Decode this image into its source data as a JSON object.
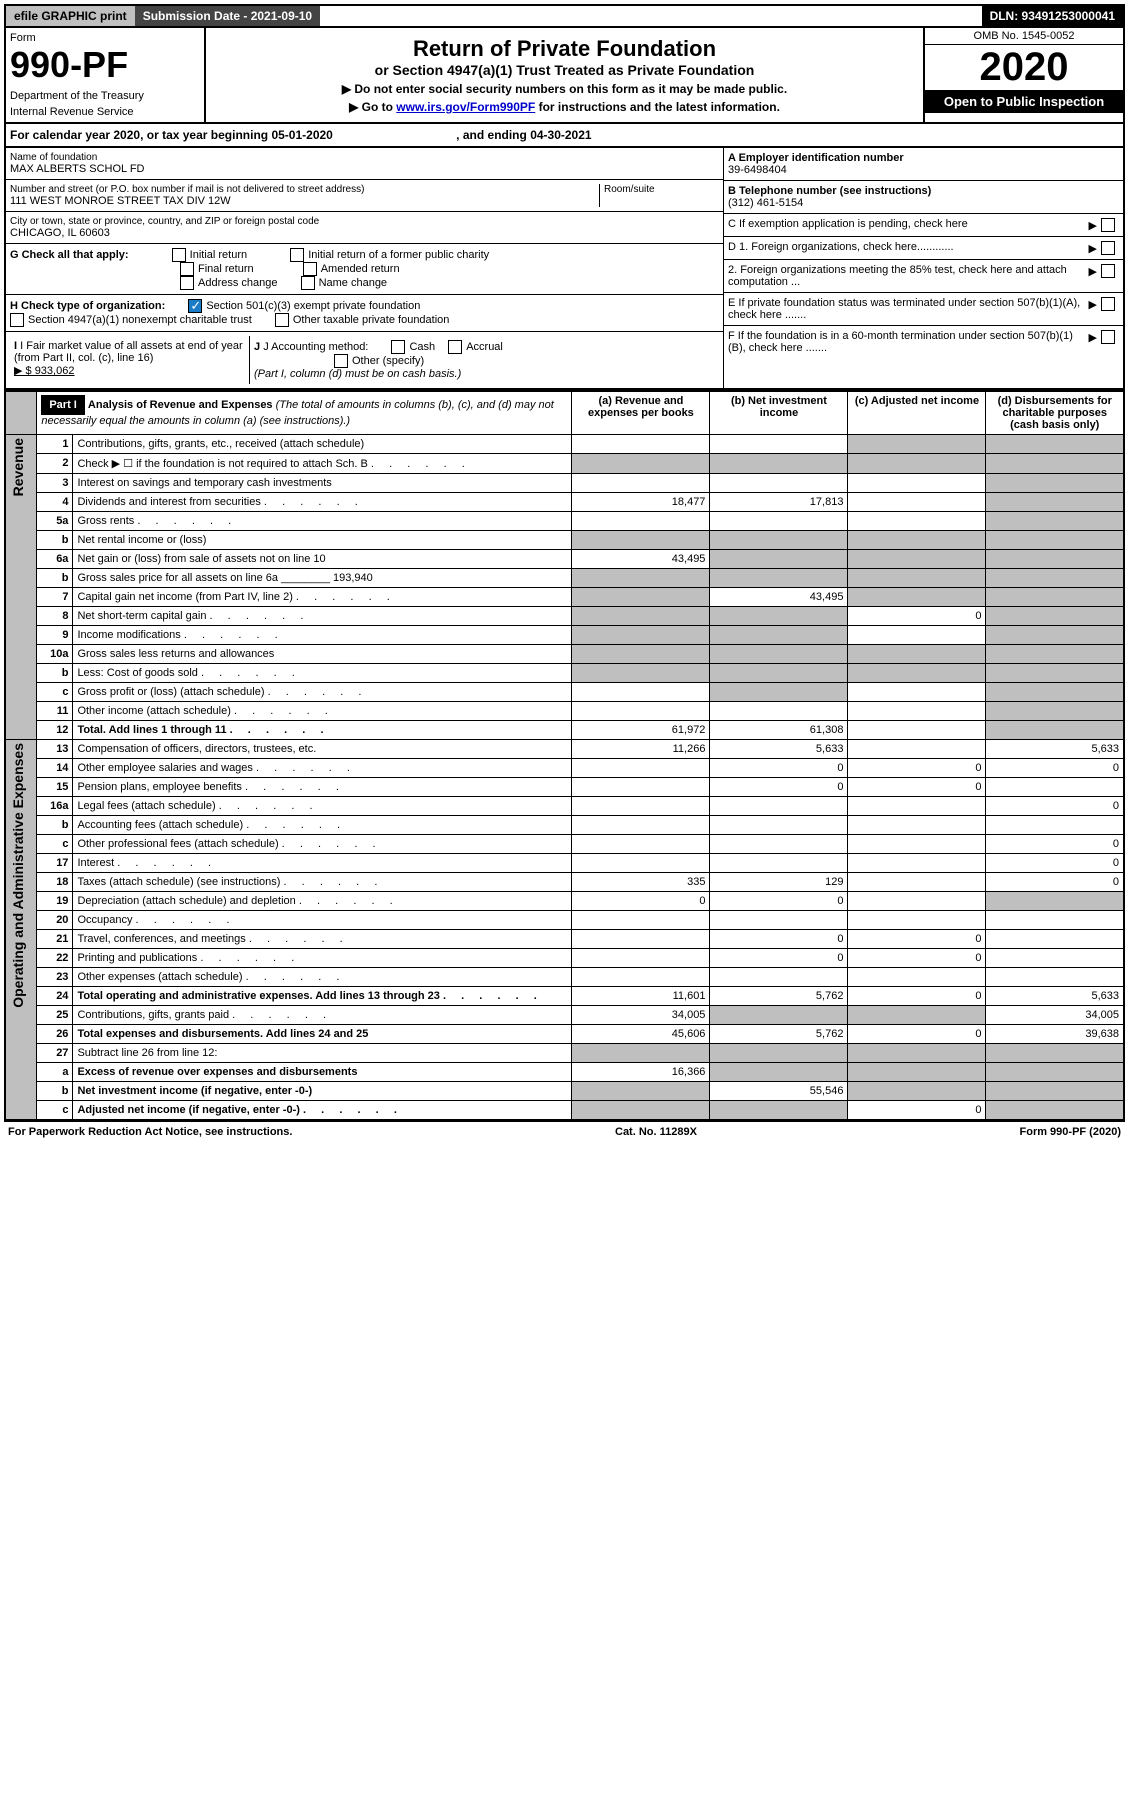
{
  "topbar": {
    "efile": "efile GRAPHIC print",
    "sub_label": "Submission Date - 2021-09-10",
    "dln": "DLN: 93491253000041"
  },
  "header": {
    "form_label": "Form",
    "form_num": "990-PF",
    "dept": "Department of the Treasury",
    "irs": "Internal Revenue Service",
    "title": "Return of Private Foundation",
    "subtitle": "or Section 4947(a)(1) Trust Treated as Private Foundation",
    "instr1": "▶ Do not enter social security numbers on this form as it may be made public.",
    "instr2_pre": "▶ Go to ",
    "instr2_link": "www.irs.gov/Form990PF",
    "instr2_post": " for instructions and the latest information.",
    "omb": "OMB No. 1545-0052",
    "year": "2020",
    "open": "Open to Public Inspection"
  },
  "calyear": {
    "pre": "For calendar year 2020, or tax year beginning ",
    "begin": "05-01-2020",
    "mid": " , and ending ",
    "end": "04-30-2021"
  },
  "foundation": {
    "name_label": "Name of foundation",
    "name": "MAX ALBERTS SCHOL FD",
    "addr_label": "Number and street (or P.O. box number if mail is not delivered to street address)",
    "addr": "111 WEST MONROE STREET TAX DIV 12W",
    "room_label": "Room/suite",
    "city_label": "City or town, state or province, country, and ZIP or foreign postal code",
    "city": "CHICAGO, IL  60603"
  },
  "right_info": {
    "a_label": "A Employer identification number",
    "a_val": "39-6498404",
    "b_label": "B Telephone number (see instructions)",
    "b_val": "(312) 461-5154",
    "c_label": "C If exemption application is pending, check here",
    "d1": "D 1. Foreign organizations, check here............",
    "d2": "2. Foreign organizations meeting the 85% test, check here and attach computation ...",
    "e": "E  If private foundation status was terminated under section 507(b)(1)(A), check here .......",
    "f": "F  If the foundation is in a 60-month termination under section 507(b)(1)(B), check here ......."
  },
  "check_g": {
    "label": "G Check all that apply:",
    "opts": [
      "Initial return",
      "Final return",
      "Address change",
      "Initial return of a former public charity",
      "Amended return",
      "Name change"
    ]
  },
  "check_h": {
    "label": "H Check type of organization:",
    "opt1": "Section 501(c)(3) exempt private foundation",
    "opt2": "Section 4947(a)(1) nonexempt charitable trust",
    "opt3": "Other taxable private foundation"
  },
  "fmv": {
    "i_label": "I Fair market value of all assets at end of year (from Part II, col. (c), line 16)",
    "i_val": "▶ $  933,062",
    "j_label": "J Accounting method:",
    "j_cash": "Cash",
    "j_accrual": "Accrual",
    "j_other": "Other (specify)",
    "j_note": "(Part I, column (d) must be on cash basis.)"
  },
  "part1": {
    "label": "Part I",
    "title": "Analysis of Revenue and Expenses",
    "note": "(The total of amounts in columns (b), (c), and (d) may not necessarily equal the amounts in column (a) (see instructions).)",
    "col_a": "(a) Revenue and expenses per books",
    "col_b": "(b) Net investment income",
    "col_c": "(c) Adjusted net income",
    "col_d": "(d) Disbursements for charitable purposes (cash basis only)"
  },
  "side_labels": {
    "rev": "Revenue",
    "exp": "Operating and Administrative Expenses"
  },
  "rows": [
    {
      "n": "1",
      "d": "Contributions, gifts, grants, etc., received (attach schedule)",
      "a": "",
      "b": "",
      "c": "g",
      "dd": "g"
    },
    {
      "n": "2",
      "d": "Check ▶ ☐ if the foundation is not required to attach Sch. B",
      "dots": 1,
      "a": "g",
      "b": "g",
      "c": "g",
      "dd": "g"
    },
    {
      "n": "3",
      "d": "Interest on savings and temporary cash investments",
      "a": "",
      "b": "",
      "c": "",
      "dd": "g"
    },
    {
      "n": "4",
      "d": "Dividends and interest from securities",
      "dots": 1,
      "a": "18,477",
      "b": "17,813",
      "c": "",
      "dd": "g"
    },
    {
      "n": "5a",
      "d": "Gross rents",
      "dots": 1,
      "a": "",
      "b": "",
      "c": "",
      "dd": "g"
    },
    {
      "n": "b",
      "d": "Net rental income or (loss)",
      "a": "g",
      "b": "g",
      "c": "g",
      "dd": "g"
    },
    {
      "n": "6a",
      "d": "Net gain or (loss) from sale of assets not on line 10",
      "a": "43,495",
      "b": "g",
      "c": "g",
      "dd": "g"
    },
    {
      "n": "b",
      "d": "Gross sales price for all assets on line 6a",
      "inline": "193,940",
      "a": "g",
      "b": "g",
      "c": "g",
      "dd": "g"
    },
    {
      "n": "7",
      "d": "Capital gain net income (from Part IV, line 2)",
      "dots": 1,
      "a": "g",
      "b": "43,495",
      "c": "g",
      "dd": "g"
    },
    {
      "n": "8",
      "d": "Net short-term capital gain",
      "dots": 1,
      "a": "g",
      "b": "g",
      "c": "0",
      "dd": "g"
    },
    {
      "n": "9",
      "d": "Income modifications",
      "dots": 1,
      "a": "g",
      "b": "g",
      "c": "",
      "dd": "g"
    },
    {
      "n": "10a",
      "d": "Gross sales less returns and allowances",
      "a": "g",
      "b": "g",
      "c": "g",
      "dd": "g"
    },
    {
      "n": "b",
      "d": "Less: Cost of goods sold",
      "dots": 1,
      "a": "g",
      "b": "g",
      "c": "g",
      "dd": "g"
    },
    {
      "n": "c",
      "d": "Gross profit or (loss) (attach schedule)",
      "dots": 1,
      "a": "",
      "b": "g",
      "c": "",
      "dd": "g"
    },
    {
      "n": "11",
      "d": "Other income (attach schedule)",
      "dots": 1,
      "a": "",
      "b": "",
      "c": "",
      "dd": "g"
    },
    {
      "n": "12",
      "d": "Total. Add lines 1 through 11",
      "dots": 1,
      "bold": 1,
      "a": "61,972",
      "b": "61,308",
      "c": "",
      "dd": "g"
    },
    {
      "n": "13",
      "d": "Compensation of officers, directors, trustees, etc.",
      "a": "11,266",
      "b": "5,633",
      "c": "",
      "dd": "5,633"
    },
    {
      "n": "14",
      "d": "Other employee salaries and wages",
      "dots": 1,
      "a": "",
      "b": "0",
      "c": "0",
      "dd": "0"
    },
    {
      "n": "15",
      "d": "Pension plans, employee benefits",
      "dots": 1,
      "a": "",
      "b": "0",
      "c": "0",
      "dd": ""
    },
    {
      "n": "16a",
      "d": "Legal fees (attach schedule)",
      "dots": 1,
      "a": "",
      "b": "",
      "c": "",
      "dd": "0"
    },
    {
      "n": "b",
      "d": "Accounting fees (attach schedule)",
      "dots": 1,
      "a": "",
      "b": "",
      "c": "",
      "dd": ""
    },
    {
      "n": "c",
      "d": "Other professional fees (attach schedule)",
      "dots": 1,
      "a": "",
      "b": "",
      "c": "",
      "dd": "0"
    },
    {
      "n": "17",
      "d": "Interest",
      "dots": 1,
      "a": "",
      "b": "",
      "c": "",
      "dd": "0"
    },
    {
      "n": "18",
      "d": "Taxes (attach schedule) (see instructions)",
      "dots": 1,
      "a": "335",
      "b": "129",
      "c": "",
      "dd": "0"
    },
    {
      "n": "19",
      "d": "Depreciation (attach schedule) and depletion",
      "dots": 1,
      "a": "0",
      "b": "0",
      "c": "",
      "dd": "g"
    },
    {
      "n": "20",
      "d": "Occupancy",
      "dots": 1,
      "a": "",
      "b": "",
      "c": "",
      "dd": ""
    },
    {
      "n": "21",
      "d": "Travel, conferences, and meetings",
      "dots": 1,
      "a": "",
      "b": "0",
      "c": "0",
      "dd": ""
    },
    {
      "n": "22",
      "d": "Printing and publications",
      "dots": 1,
      "a": "",
      "b": "0",
      "c": "0",
      "dd": ""
    },
    {
      "n": "23",
      "d": "Other expenses (attach schedule)",
      "dots": 1,
      "a": "",
      "b": "",
      "c": "",
      "dd": ""
    },
    {
      "n": "24",
      "d": "Total operating and administrative expenses. Add lines 13 through 23",
      "dots": 1,
      "bold": 1,
      "a": "11,601",
      "b": "5,762",
      "c": "0",
      "dd": "5,633"
    },
    {
      "n": "25",
      "d": "Contributions, gifts, grants paid",
      "dots": 1,
      "a": "34,005",
      "b": "g",
      "c": "g",
      "dd": "34,005"
    },
    {
      "n": "26",
      "d": "Total expenses and disbursements. Add lines 24 and 25",
      "bold": 1,
      "a": "45,606",
      "b": "5,762",
      "c": "0",
      "dd": "39,638"
    },
    {
      "n": "27",
      "d": "Subtract line 26 from line 12:",
      "a": "g",
      "b": "g",
      "c": "g",
      "dd": "g"
    },
    {
      "n": "a",
      "d": "Excess of revenue over expenses and disbursements",
      "bold": 1,
      "a": "16,366",
      "b": "g",
      "c": "g",
      "dd": "g"
    },
    {
      "n": "b",
      "d": "Net investment income (if negative, enter -0-)",
      "bold": 1,
      "a": "g",
      "b": "55,546",
      "c": "g",
      "dd": "g"
    },
    {
      "n": "c",
      "d": "Adjusted net income (if negative, enter -0-)",
      "dots": 1,
      "bold": 1,
      "a": "g",
      "b": "g",
      "c": "0",
      "dd": "g"
    }
  ],
  "footer": {
    "left": "For Paperwork Reduction Act Notice, see instructions.",
    "mid": "Cat. No. 11289X",
    "right": "Form 990-PF (2020)"
  }
}
